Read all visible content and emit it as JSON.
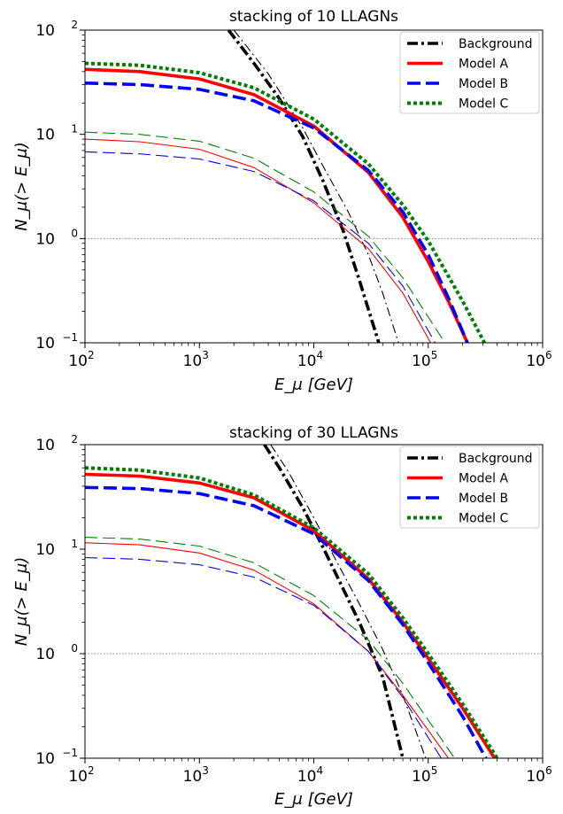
{
  "chart_data": [
    {
      "type": "line",
      "title": "stacking of 10 LLAGNs",
      "xlabel": "E_μ [GeV]",
      "ylabel": "N_μ(> E_μ)",
      "xscale": "log",
      "yscale": "log",
      "xlim": [
        100,
        1000000
      ],
      "ylim": [
        0.1,
        100
      ],
      "xticks": [
        {
          "base": "10",
          "exp": "2"
        },
        {
          "base": "10",
          "exp": "3"
        },
        {
          "base": "10",
          "exp": "4"
        },
        {
          "base": "10",
          "exp": "5"
        },
        {
          "base": "10",
          "exp": "6"
        }
      ],
      "yticks": [
        {
          "base": "10",
          "exp": "−1"
        },
        {
          "base": "10",
          "exp": "0"
        },
        {
          "base": "10",
          "exp": "1"
        },
        {
          "base": "10",
          "exp": "2"
        }
      ],
      "reference_line": {
        "y": 1,
        "style": "dotted",
        "color": "#888888"
      },
      "legend_position": "top-right",
      "legend": [
        {
          "label": "Background",
          "color": "#000000",
          "style": "dashdot"
        },
        {
          "label": "Model A",
          "color": "#ff0000",
          "style": "solid"
        },
        {
          "label": "Model B",
          "color": "#0000ff",
          "style": "dashed"
        },
        {
          "label": "Model C",
          "color": "#008000",
          "style": "dotted"
        }
      ],
      "series": [
        {
          "model": "Background",
          "variant": "thick",
          "color": "#000000",
          "style": "dashdot",
          "x": [
            1800,
            3000,
            5000,
            8000,
            12000,
            18000,
            25000,
            37000
          ],
          "y": [
            100,
            48,
            22,
            9.5,
            3.6,
            1.2,
            0.4,
            0.1
          ]
        },
        {
          "model": "Background",
          "variant": "thin",
          "color": "#000000",
          "style": "dashdot",
          "x": [
            2000,
            4000,
            8000,
            12000,
            20000,
            30000,
            40000,
            55000
          ],
          "y": [
            100,
            38,
            11.5,
            5.0,
            1.8,
            0.7,
            0.3,
            0.1
          ]
        },
        {
          "model": "Model A",
          "variant": "thick",
          "color": "#ff0000",
          "style": "solid",
          "x": [
            100,
            300,
            1000,
            3000,
            10000,
            30000,
            60000,
            100000,
            150000,
            220000
          ],
          "y": [
            42,
            40,
            34,
            24,
            12,
            4.3,
            1.6,
            0.6,
            0.25,
            0.1
          ]
        },
        {
          "model": "Model B",
          "variant": "thick",
          "color": "#0000ff",
          "style": "dashed",
          "x": [
            100,
            300,
            1000,
            3000,
            10000,
            30000,
            60000,
            100000,
            150000,
            220000
          ],
          "y": [
            31,
            30,
            27,
            21,
            11.5,
            4.5,
            1.8,
            0.7,
            0.27,
            0.1
          ]
        },
        {
          "model": "Model C",
          "variant": "thick",
          "color": "#008000",
          "style": "dotted",
          "x": [
            100,
            300,
            1000,
            3000,
            10000,
            30000,
            60000,
            100000,
            200000,
            310000
          ],
          "y": [
            48,
            46,
            39,
            28,
            14,
            5.2,
            2.1,
            0.95,
            0.25,
            0.1
          ]
        },
        {
          "model": "Model A",
          "variant": "thin",
          "color": "#ff0000",
          "style": "solid",
          "x": [
            100,
            300,
            1000,
            3000,
            10000,
            30000,
            60000,
            105000
          ],
          "y": [
            9,
            8.5,
            7.2,
            4.8,
            2.2,
            0.8,
            0.3,
            0.1
          ]
        },
        {
          "model": "Model B",
          "variant": "thin",
          "color": "#0000ff",
          "style": "dashed",
          "x": [
            100,
            300,
            1000,
            3000,
            10000,
            30000,
            60000,
            115000
          ],
          "y": [
            6.8,
            6.5,
            5.8,
            4.4,
            2.3,
            0.9,
            0.35,
            0.1
          ]
        },
        {
          "model": "Model C",
          "variant": "thin",
          "color": "#008000",
          "style": "dashed",
          "x": [
            100,
            300,
            1000,
            3000,
            10000,
            30000,
            60000,
            140000
          ],
          "y": [
            10.5,
            10,
            8.6,
            5.9,
            2.8,
            1.05,
            0.42,
            0.1
          ]
        }
      ]
    },
    {
      "type": "line",
      "title": "stacking of 30 LLAGNs",
      "xlabel": "E_μ [GeV]",
      "ylabel": "N_μ(> E_μ)",
      "xscale": "log",
      "yscale": "log",
      "xlim": [
        100,
        1000000
      ],
      "ylim": [
        0.1,
        100
      ],
      "xticks": [
        {
          "base": "10",
          "exp": "2"
        },
        {
          "base": "10",
          "exp": "3"
        },
        {
          "base": "10",
          "exp": "4"
        },
        {
          "base": "10",
          "exp": "5"
        },
        {
          "base": "10",
          "exp": "6"
        }
      ],
      "yticks": [
        {
          "base": "10",
          "exp": "−1"
        },
        {
          "base": "10",
          "exp": "0"
        },
        {
          "base": "10",
          "exp": "1"
        },
        {
          "base": "10",
          "exp": "2"
        }
      ],
      "reference_line": {
        "y": 1,
        "style": "dotted",
        "color": "#888888"
      },
      "legend_position": "top-right",
      "legend": [
        {
          "label": "Background",
          "color": "#000000",
          "style": "dashdot"
        },
        {
          "label": "Model A",
          "color": "#ff0000",
          "style": "solid"
        },
        {
          "label": "Model B",
          "color": "#0000ff",
          "style": "dashed"
        },
        {
          "label": "Model C",
          "color": "#008000",
          "style": "dotted"
        }
      ],
      "series": [
        {
          "model": "Background",
          "variant": "thick",
          "color": "#000000",
          "style": "dashdot",
          "x": [
            3700,
            5000,
            8000,
            12000,
            18000,
            25000,
            40000,
            60000
          ],
          "y": [
            100,
            60,
            25,
            10.5,
            4.2,
            2.0,
            0.6,
            0.1
          ]
        },
        {
          "model": "Background",
          "variant": "thin",
          "color": "#000000",
          "style": "dashdot",
          "x": [
            4200,
            6000,
            10000,
            15000,
            25000,
            40000,
            60000,
            95000
          ],
          "y": [
            100,
            55,
            20,
            8.5,
            3.0,
            1.1,
            0.4,
            0.1
          ]
        },
        {
          "model": "Model A",
          "variant": "thick",
          "color": "#ff0000",
          "style": "solid",
          "x": [
            100,
            300,
            1000,
            3000,
            10000,
            30000,
            60000,
            100000,
            200000,
            380000
          ],
          "y": [
            52,
            50,
            43,
            31,
            15,
            5.2,
            2.0,
            0.9,
            0.3,
            0.1
          ]
        },
        {
          "model": "Model B",
          "variant": "thick",
          "color": "#0000ff",
          "style": "dashed",
          "x": [
            100,
            300,
            1000,
            3000,
            10000,
            30000,
            60000,
            100000,
            200000,
            320000
          ],
          "y": [
            39,
            38,
            34,
            26,
            14,
            5.0,
            1.9,
            0.82,
            0.25,
            0.1
          ]
        },
        {
          "model": "Model C",
          "variant": "thick",
          "color": "#008000",
          "style": "dotted",
          "x": [
            100,
            300,
            1000,
            3000,
            10000,
            30000,
            60000,
            100000,
            200000,
            400000
          ],
          "y": [
            60,
            57,
            48,
            33,
            16,
            5.8,
            2.2,
            1.0,
            0.33,
            0.1
          ]
        },
        {
          "model": "Model A",
          "variant": "thin",
          "color": "#ff0000",
          "style": "solid",
          "x": [
            100,
            300,
            1000,
            3000,
            10000,
            30000,
            60000,
            150000
          ],
          "y": [
            11.5,
            11,
            9.2,
            6.3,
            3.0,
            1.05,
            0.4,
            0.1
          ]
        },
        {
          "model": "Model B",
          "variant": "thin",
          "color": "#0000ff",
          "style": "dashed",
          "x": [
            100,
            300,
            1000,
            3000,
            10000,
            30000,
            60000,
            130000
          ],
          "y": [
            8.3,
            8.0,
            7.1,
            5.4,
            2.9,
            1.05,
            0.38,
            0.1
          ]
        },
        {
          "model": "Model C",
          "variant": "thin",
          "color": "#008000",
          "style": "dashed",
          "x": [
            100,
            300,
            1000,
            3000,
            10000,
            30000,
            60000,
            170000
          ],
          "y": [
            13,
            12.5,
            10.7,
            7.4,
            3.6,
            1.35,
            0.52,
            0.1
          ]
        }
      ]
    }
  ]
}
